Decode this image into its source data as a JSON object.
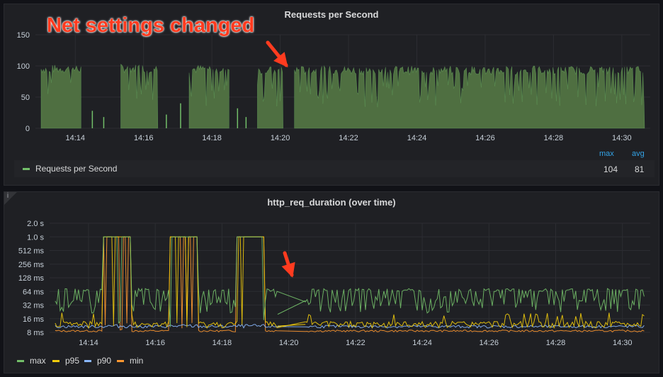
{
  "panels": [
    {
      "title": "Requests per Second"
    },
    {
      "title": "http_req_duration (over time)"
    }
  ],
  "annotation": {
    "text": "Net settings changed",
    "color": "#ff3b1f"
  },
  "info_icon": "i",
  "colors": {
    "bg": "#111217",
    "panel": "#1f2024",
    "grid": "#2c2d32",
    "text": "#c7d0d9",
    "green": "#73bf69",
    "yellow": "#f2cc0c",
    "blue": "#8ab8ff",
    "orange": "#ff9830"
  },
  "legend_top": {
    "series": "Requests per Second",
    "stats_headers": [
      "max",
      "avg"
    ],
    "stats_values": [
      "104",
      "81"
    ]
  },
  "legend_bottom": [
    "max",
    "p95",
    "p90",
    "min"
  ],
  "chart_data": [
    {
      "type": "bar",
      "title": "Requests per Second",
      "x_ticks": [
        "14:14",
        "14:16",
        "14:18",
        "14:20",
        "14:22",
        "14:24",
        "14:26",
        "14:28",
        "14:30"
      ],
      "y_ticks": [
        "0",
        "50",
        "100",
        "150"
      ],
      "ylim": [
        0,
        150
      ],
      "xlim": [
        "14:12:50",
        "14:30:50"
      ],
      "segments": [
        {
          "start": "14:13:00",
          "end": "14:14:10",
          "level": 95
        },
        {
          "start": "14:15:20",
          "end": "14:16:25",
          "level": 96
        },
        {
          "start": "14:17:20",
          "end": "14:18:30",
          "level": 95
        },
        {
          "start": "14:19:20",
          "end": "14:20:05",
          "level": 92
        },
        {
          "start": "14:20:25",
          "end": "14:30:40",
          "level": 93
        }
      ],
      "series": [
        {
          "name": "Requests per Second",
          "max": 104,
          "avg": 81
        }
      ],
      "grid": true,
      "legend": "bottom"
    },
    {
      "type": "line",
      "title": "http_req_duration (over time)",
      "x_ticks": [
        "14:14",
        "14:16",
        "14:18",
        "14:20",
        "14:22",
        "14:24",
        "14:26",
        "14:28",
        "14:30"
      ],
      "y_ticks": [
        "8 ms",
        "16 ms",
        "32 ms",
        "64 ms",
        "128 ms",
        "256 ms",
        "512 ms",
        "1.0 s",
        "2.0 s"
      ],
      "y_scale": "log2",
      "ylim_ms": [
        8,
        2048
      ],
      "xlim": [
        "14:12:50",
        "14:30:50"
      ],
      "series": [
        {
          "name": "max",
          "typical_ms": [
            32,
            70
          ],
          "spikes_ms": 1024
        },
        {
          "name": "p95",
          "typical_ms": [
            11,
            14
          ],
          "spikes_ms": 1024
        },
        {
          "name": "p90",
          "typical_ms": [
            10,
            12
          ]
        },
        {
          "name": "min",
          "typical_ms": [
            8,
            9
          ],
          "spikes_ms": 1024
        }
      ],
      "spike_windows": [
        {
          "start": "14:14:25",
          "end": "14:15:15"
        },
        {
          "start": "14:16:25",
          "end": "14:17:15"
        },
        {
          "start": "14:18:25",
          "end": "14:19:15"
        }
      ],
      "grid": true,
      "legend": "bottom-left"
    }
  ]
}
